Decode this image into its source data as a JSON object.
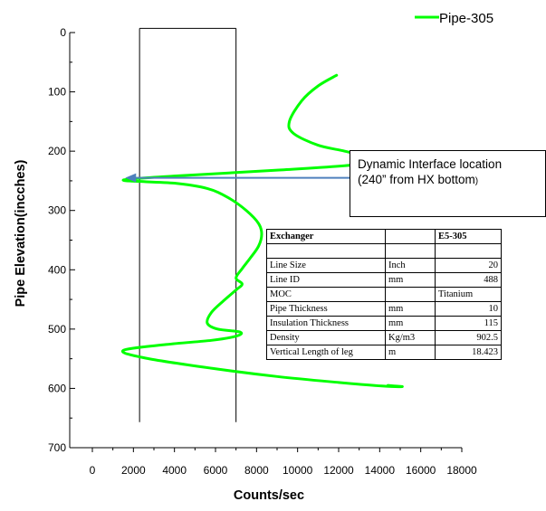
{
  "chart_data": {
    "type": "line",
    "ylabel": "Pipe Elevation(incches)",
    "xlabel": "Counts/sec",
    "x_ticks": [
      "0",
      "2000",
      "4000",
      "6000",
      "8000",
      "10000",
      "12000",
      "14000",
      "16000",
      "18000"
    ],
    "y_ticks": [
      "0",
      "100",
      "200",
      "300",
      "400",
      "500",
      "600",
      "700"
    ],
    "xlim": [
      0,
      18000
    ],
    "ylim": [
      0,
      700
    ],
    "y_inverted": true,
    "grid": false,
    "legend_position": "top-right",
    "series": [
      {
        "name": "Pipe-305",
        "color": "#00ff00",
        "points": [
          [
            11900,
            72
          ],
          [
            11000,
            90
          ],
          [
            10200,
            115
          ],
          [
            9600,
            150
          ],
          [
            9800,
            170
          ],
          [
            11000,
            190
          ],
          [
            12300,
            200
          ],
          [
            13300,
            210
          ],
          [
            13000,
            222
          ],
          [
            9000,
            232
          ],
          [
            4000,
            242
          ],
          [
            1500,
            249
          ],
          [
            4000,
            254
          ],
          [
            5600,
            263
          ],
          [
            6600,
            278
          ],
          [
            7500,
            300
          ],
          [
            8100,
            322
          ],
          [
            8250,
            340
          ],
          [
            8100,
            360
          ],
          [
            7700,
            380
          ],
          [
            7300,
            398
          ],
          [
            7000,
            414
          ],
          [
            7300,
            424
          ],
          [
            7000,
            434
          ],
          [
            6400,
            452
          ],
          [
            5800,
            472
          ],
          [
            5600,
            490
          ],
          [
            6100,
            500
          ],
          [
            7200,
            505
          ],
          [
            7000,
            512
          ],
          [
            5800,
            519
          ],
          [
            3600,
            526
          ],
          [
            1500,
            536
          ],
          [
            2600,
            549
          ],
          [
            5800,
            566
          ],
          [
            9000,
            580
          ],
          [
            12000,
            590
          ],
          [
            14100,
            596
          ],
          [
            15100,
            597
          ],
          [
            14400,
            595
          ]
        ]
      }
    ],
    "reference_lines_x": [
      2300,
      7000
    ],
    "annotation": {
      "line1": "Dynamic Interface location",
      "line2": "(240” from HX bottom",
      "line2_paren": ")",
      "arrow_color": "#4f81bd",
      "arrow_y": 245
    }
  },
  "spec_table": {
    "header": [
      "Exchanger",
      "",
      "E5-305"
    ],
    "rows": [
      [
        "",
        "",
        ""
      ],
      [
        "Line Size",
        "Inch",
        "20"
      ],
      [
        "Line ID",
        "mm",
        "488"
      ],
      [
        "MOC",
        "",
        "Titanium"
      ],
      [
        "Pipe Thickness",
        "mm",
        "10"
      ],
      [
        "Insulation Thickness",
        "mm",
        "115"
      ],
      [
        "Density",
        "Kg/m3",
        "902.5"
      ],
      [
        "Vertical Length of leg",
        "m",
        "18.423"
      ]
    ]
  }
}
